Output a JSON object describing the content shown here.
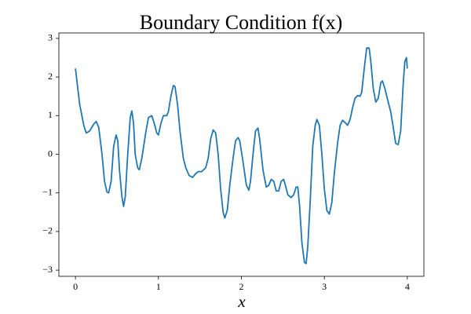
{
  "chart_data": {
    "type": "line",
    "title": "Boundary Condition f(x)",
    "x_label": "x",
    "xlim": [
      -0.2,
      4.2
    ],
    "ylim": [
      -3.16,
      3.14
    ],
    "xticks": [
      0,
      1,
      2,
      3,
      4
    ],
    "yticks": [
      {
        "value": -3,
        "label": "−3"
      },
      {
        "value": -2,
        "label": "−2"
      },
      {
        "value": -1,
        "label": "−1"
      },
      0,
      1,
      2,
      3
    ],
    "grid": false,
    "series": [
      {
        "color": "#1f77b4",
        "x": [
          0,
          0.05,
          0.1,
          0.13,
          0.17,
          0.22,
          0.25,
          0.28,
          0.32,
          0.35,
          0.38,
          0.4,
          0.43,
          0.46,
          0.49,
          0.51,
          0.53,
          0.56,
          0.58,
          0.6,
          0.63,
          0.66,
          0.68,
          0.7,
          0.72,
          0.75,
          0.77,
          0.8,
          0.85,
          0.88,
          0.92,
          0.95,
          0.98,
          1.0,
          1.03,
          1.06,
          1.1,
          1.12,
          1.15,
          1.18,
          1.2,
          1.23,
          1.26,
          1.3,
          1.33,
          1.37,
          1.41,
          1.45,
          1.48,
          1.52,
          1.57,
          1.6,
          1.63,
          1.66,
          1.69,
          1.72,
          1.75,
          1.78,
          1.8,
          1.83,
          1.86,
          1.9,
          1.93,
          1.96,
          1.98,
          2.02,
          2.06,
          2.09,
          2.11,
          2.14,
          2.17,
          2.2,
          2.22,
          2.26,
          2.3,
          2.33,
          2.36,
          2.39,
          2.42,
          2.45,
          2.48,
          2.51,
          2.53,
          2.56,
          2.6,
          2.63,
          2.66,
          2.68,
          2.7,
          2.73,
          2.76,
          2.78,
          2.8,
          2.83,
          2.86,
          2.89,
          2.91,
          2.94,
          2.97,
          3.0,
          3.03,
          3.06,
          3.09,
          3.12,
          3.16,
          3.19,
          3.22,
          3.25,
          3.28,
          3.31,
          3.34,
          3.37,
          3.4,
          3.43,
          3.45,
          3.48,
          3.51,
          3.54,
          3.56,
          3.59,
          3.62,
          3.65,
          3.68,
          3.7,
          3.73,
          3.77,
          3.8,
          3.83,
          3.86,
          3.89,
          3.92,
          3.95,
          3.97,
          3.99,
          4.0
        ],
        "values": [
          2.22,
          1.3,
          0.75,
          0.55,
          0.6,
          0.78,
          0.85,
          0.7,
          0.0,
          -0.7,
          -0.98,
          -1.0,
          -0.7,
          0.2,
          0.5,
          0.35,
          -0.4,
          -1.1,
          -1.35,
          -1.1,
          0.0,
          0.95,
          1.12,
          0.8,
          0.0,
          -0.35,
          -0.4,
          -0.1,
          0.6,
          0.95,
          1.0,
          0.8,
          0.55,
          0.5,
          0.8,
          1.0,
          1.0,
          1.1,
          1.5,
          1.78,
          1.75,
          1.3,
          0.6,
          -0.1,
          -0.35,
          -0.55,
          -0.6,
          -0.5,
          -0.45,
          -0.45,
          -0.35,
          -0.1,
          0.4,
          0.63,
          0.55,
          0.0,
          -0.9,
          -1.5,
          -1.65,
          -1.45,
          -0.8,
          -0.1,
          0.35,
          0.43,
          0.35,
          -0.2,
          -0.8,
          -0.93,
          -0.7,
          0.0,
          0.6,
          0.68,
          0.4,
          -0.4,
          -0.85,
          -0.8,
          -0.65,
          -0.7,
          -0.95,
          -0.95,
          -0.7,
          -0.65,
          -0.8,
          -1.05,
          -1.12,
          -1.05,
          -0.85,
          -0.85,
          -1.3,
          -2.3,
          -2.8,
          -2.83,
          -2.4,
          -1.2,
          0.2,
          0.75,
          0.9,
          0.75,
          0.0,
          -0.9,
          -1.45,
          -1.55,
          -1.25,
          -0.5,
          0.3,
          0.75,
          0.88,
          0.82,
          0.75,
          0.9,
          1.2,
          1.45,
          1.52,
          1.5,
          1.6,
          2.2,
          2.75,
          2.75,
          2.4,
          1.7,
          1.35,
          1.45,
          1.85,
          1.9,
          1.7,
          1.35,
          1.1,
          0.7,
          0.28,
          0.25,
          0.6,
          1.8,
          2.4,
          2.5,
          2.22
        ]
      }
    ]
  }
}
